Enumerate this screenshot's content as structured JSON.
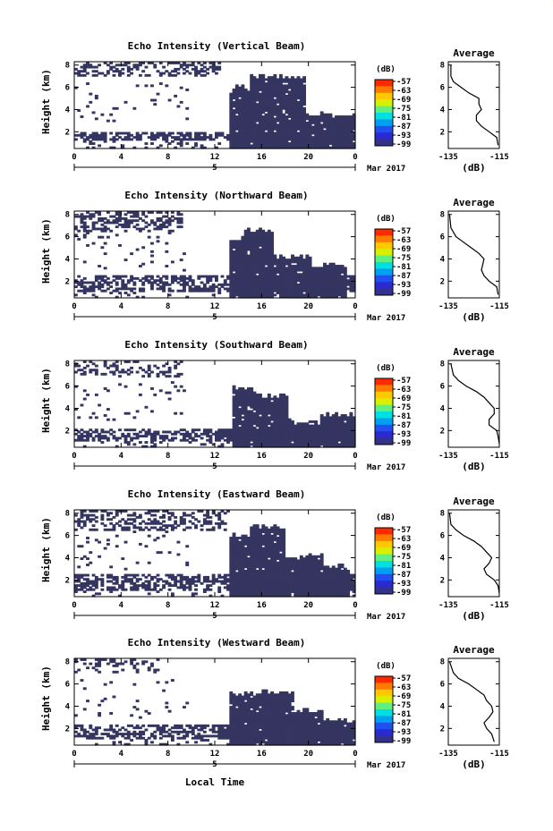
{
  "panels": [
    {
      "id": "vertical",
      "title": "Echo Intensity (Vertical Beam)",
      "ylabel": "Height (km)",
      "profile_xticks": [
        "-135",
        "-115"
      ]
    },
    {
      "id": "north",
      "title": "Echo Intensity (Northward Beam)",
      "ylabel": "Height (km)",
      "profile_xticks": [
        "-135",
        "-115"
      ]
    },
    {
      "id": "south",
      "title": "Echo Intensity (Southward Beam)",
      "ylabel": "Height (km)",
      "profile_xticks": [
        "-135",
        "-115"
      ]
    },
    {
      "id": "east",
      "title": "Echo Intensity (Eastward Beam)",
      "ylabel": "Height (km)",
      "profile_xticks": [
        "-135",
        "-115"
      ]
    },
    {
      "id": "west",
      "title": "Echo Intensity (Westward Beam)",
      "ylabel": "Height (km)",
      "profile_xticks": [
        "-135",
        "-115"
      ]
    }
  ],
  "colorbar": {
    "unit_label": "(dB)",
    "ticks": [
      "-57",
      "-63",
      "-69",
      "-75",
      "-81",
      "-87",
      "-93",
      "-99"
    ],
    "colors": [
      "#ff2a00",
      "#ff7a00",
      "#ffc800",
      "#d8f000",
      "#60f080",
      "#00e0e0",
      "#00a0f0",
      "#2050f0",
      "#2a2ad0",
      "#32328a"
    ]
  },
  "x_axis": {
    "ticks": [
      "0",
      "4",
      "8",
      "12",
      "16",
      "20",
      "0"
    ],
    "date_mid": "5",
    "date_right": "Mar 2017",
    "label": "Local Time"
  },
  "y_axis": {
    "ticks": [
      "2",
      "4",
      "6",
      "8"
    ]
  },
  "profile": {
    "title": "Average",
    "xlabel": "(dB)"
  },
  "fill_color": "#353561",
  "chart_data": [
    {
      "type": "heatmap",
      "title": "Echo Intensity (Vertical Beam)",
      "xlabel": "",
      "ylabel": "Height (km)",
      "xlim": [
        0,
        24
      ],
      "ylim": [
        0.5,
        8.3
      ],
      "profile": {
        "type": "line",
        "title": "Average",
        "xlabel": "(dB)",
        "xlim": [
          -135,
          -115
        ],
        "ylim": [
          0.5,
          8.3
        ],
        "x": [
          -115.5,
          -116,
          -119,
          -122,
          -124,
          -124,
          -122,
          -123,
          -123,
          -127,
          -130,
          -133,
          -134,
          -134
        ],
        "y": [
          0.8,
          1.5,
          2,
          2.5,
          3,
          3.5,
          4,
          4.5,
          5,
          5.5,
          6,
          6.5,
          7,
          8
        ]
      }
    },
    {
      "type": "heatmap",
      "title": "Echo Intensity (Northward Beam)",
      "xlabel": "",
      "ylabel": "Height (km)",
      "xlim": [
        0,
        24
      ],
      "ylim": [
        0.5,
        8.3
      ],
      "profile": {
        "type": "line",
        "title": "Average",
        "xlabel": "(dB)",
        "xlim": [
          -135,
          -115
        ],
        "ylim": [
          0.5,
          8.3
        ],
        "x": [
          -115.5,
          -116,
          -119,
          -121,
          -122,
          -121.5,
          -121,
          -123,
          -126,
          -129,
          -132,
          -134,
          -134.5
        ],
        "y": [
          0.8,
          1.5,
          2,
          2.5,
          3,
          3.5,
          4,
          4.5,
          5,
          5.5,
          6,
          6.8,
          8
        ]
      }
    },
    {
      "type": "heatmap",
      "title": "Echo Intensity (Southward Beam)",
      "xlabel": "",
      "ylabel": "Height (km)",
      "xlim": [
        0,
        24
      ],
      "ylim": [
        0.5,
        8.3
      ],
      "profile": {
        "type": "line",
        "title": "Average",
        "xlabel": "(dB)",
        "xlim": [
          -135,
          -115
        ],
        "ylim": [
          0.5,
          8.3
        ],
        "x": [
          -115,
          -115.5,
          -116,
          -119,
          -119,
          -117,
          -117,
          -119,
          -121,
          -124,
          -128,
          -131,
          -133,
          -134
        ],
        "y": [
          0.8,
          1.5,
          2,
          2.5,
          3,
          3.5,
          4,
          4.5,
          5,
          5.5,
          6,
          6.5,
          7,
          8
        ]
      }
    },
    {
      "type": "heatmap",
      "title": "Echo Intensity (Eastward Beam)",
      "xlabel": "",
      "ylabel": "Height (km)",
      "xlim": [
        0,
        24
      ],
      "ylim": [
        0.5,
        8.3
      ],
      "profile": {
        "type": "line",
        "title": "Average",
        "xlabel": "(dB)",
        "xlim": [
          -135,
          -115
        ],
        "ylim": [
          0.5,
          8.3
        ],
        "x": [
          -115,
          -115.5,
          -117,
          -120,
          -121,
          -119,
          -118,
          -120,
          -122,
          -125,
          -129,
          -132,
          -134,
          -134.5
        ],
        "y": [
          0.8,
          1.5,
          2,
          2.5,
          3,
          3.5,
          4,
          4.5,
          5,
          5.5,
          6,
          6.5,
          7,
          8
        ]
      }
    },
    {
      "type": "heatmap",
      "title": "Echo Intensity (Westward Beam)",
      "xlabel": "",
      "ylabel": "Height (km)",
      "xlim": [
        0,
        24
      ],
      "ylim": [
        0.5,
        8.3
      ],
      "profile": {
        "type": "line",
        "title": "Average",
        "xlabel": "(dB)",
        "xlim": [
          -135,
          -115
        ],
        "ylim": [
          0.5,
          8.3
        ],
        "x": [
          -117,
          -118,
          -120,
          -121,
          -119,
          -117.5,
          -118,
          -120,
          -121,
          -124,
          -127,
          -131,
          -133,
          -134.5
        ],
        "y": [
          0.8,
          1.5,
          2,
          2.5,
          3,
          3.5,
          4,
          4.5,
          5,
          5.5,
          6,
          6.5,
          7,
          8
        ]
      }
    }
  ]
}
